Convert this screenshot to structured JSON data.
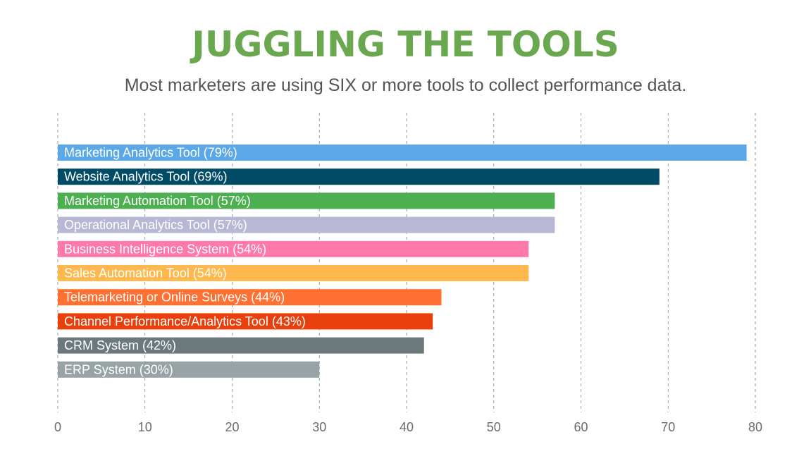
{
  "header": {
    "title": "JUGGLING THE TOOLS",
    "subtitle": "Most marketers are using SIX or more tools to collect performance data."
  },
  "chart_data": {
    "type": "bar",
    "orientation": "horizontal",
    "title": "JUGGLING THE TOOLS",
    "subtitle": "Most marketers are using SIX or more tools to collect performance data.",
    "categories": [
      "Marketing Analytics Tool",
      "Website Analytics Tool",
      "Marketing Automation Tool",
      "Operational Analytics Tool",
      "Business Intelligence System",
      "Sales Automation Tool",
      "Telemarketing or Online Surveys",
      "Channel Performance/Analytics Tool",
      "CRM System",
      "ERP System"
    ],
    "values": [
      79,
      69,
      57,
      57,
      54,
      54,
      44,
      43,
      42,
      30
    ],
    "bar_labels": [
      "Marketing Analytics Tool (79%)",
      "Website Analytics Tool (69%)",
      "Marketing Automation Tool (57%)",
      "Operational Analytics Tool (57%)",
      "Business Intelligence System (54%)",
      "Sales Automation Tool (54%)",
      "Telemarketing or Online Surveys (44%)",
      "Channel Performance/Analytics Tool (43%)",
      "CRM System (42%)",
      "ERP System (30%)"
    ],
    "colors": [
      "#5ba8e8",
      "#004c66",
      "#4caf50",
      "#b8b8d6",
      "#ff7aaa",
      "#ffb84d",
      "#ff7033",
      "#e8400c",
      "#6b797d",
      "#97a3a4"
    ],
    "xlim": [
      0,
      80
    ],
    "xticks": [
      0,
      10,
      20,
      30,
      40,
      50,
      60,
      70,
      80
    ],
    "xlabel": "",
    "ylabel": "",
    "grid": "vertical dashed",
    "legend": "none"
  }
}
